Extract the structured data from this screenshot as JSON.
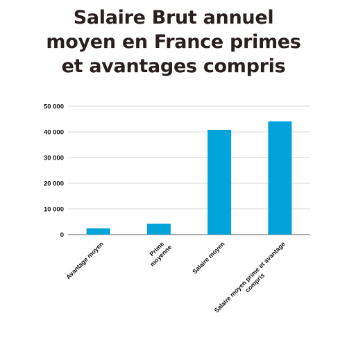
{
  "chart_data": {
    "type": "bar",
    "title_lines": [
      "Salaire Brut annuel",
      "moyen en France primes",
      "et avantages compris"
    ],
    "categories": [
      [
        "Avantage moyen"
      ],
      [
        "Prime",
        "moyenne"
      ],
      [
        "Salaire moyen"
      ],
      [
        "Salaire moyen prime et avantage",
        "compris"
      ]
    ],
    "values": [
      2400,
      4200,
      40800,
      44100
    ],
    "yticks": [
      "0",
      "10 000",
      "20 000",
      "30 000",
      "40 000",
      "50 000"
    ],
    "ylim": [
      0,
      50000
    ],
    "grid": true,
    "bar_color": "#00a3da",
    "grid_color": "#d9d9d9",
    "axis_color": "#555555"
  }
}
